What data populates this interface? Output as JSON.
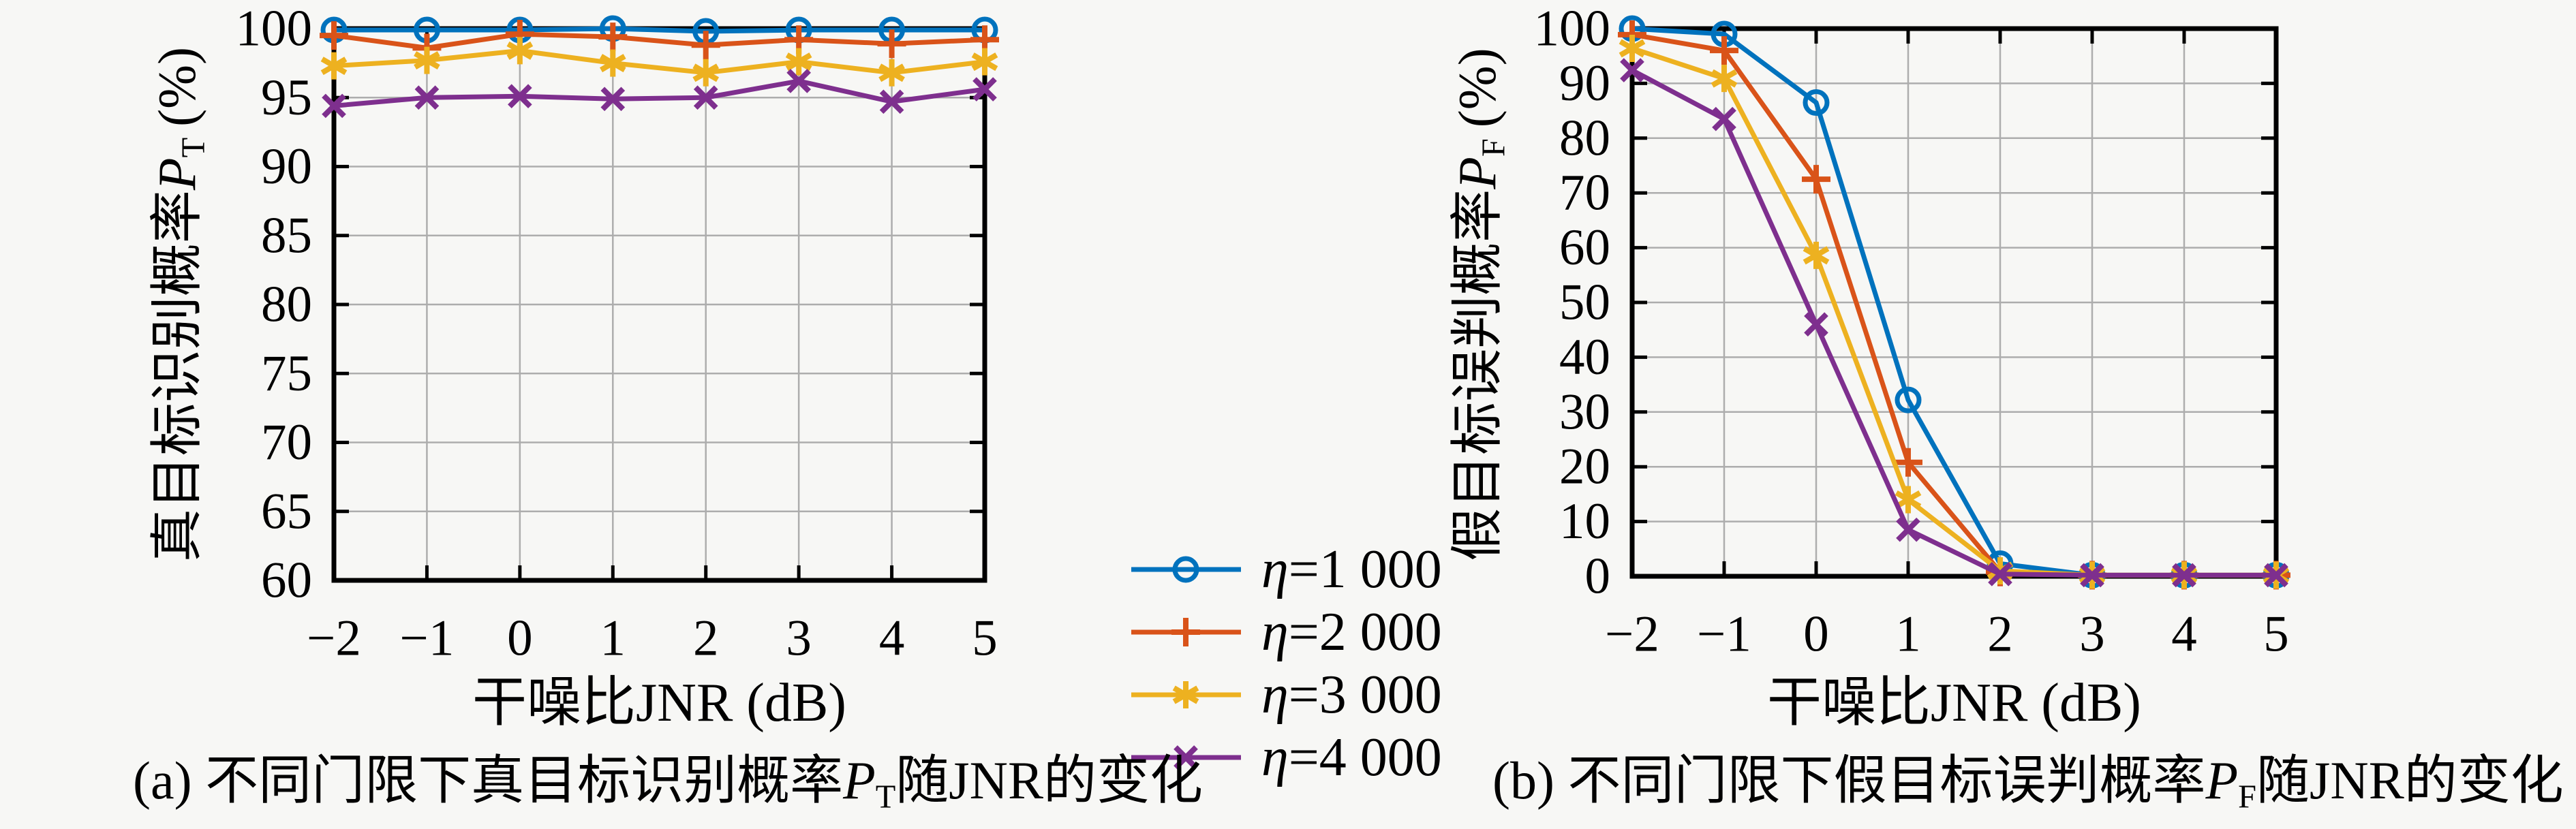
{
  "page": {
    "background": "#f7f7f5",
    "text_color": "#000000",
    "grid_color": "#adadad",
    "frame_color": "#000000"
  },
  "palette": {
    "blue": "#0072BD",
    "orange": "#D95319",
    "yellow": "#EDB120",
    "purple": "#7E2F8E"
  },
  "chart_data": [
    {
      "type": "line",
      "panel_id": "a",
      "xlabel": "干噪比JNR (dB)",
      "ylabel": {
        "prefix": "真目标识别概率",
        "var": "P",
        "sub": "T",
        "suffix": "(%)"
      },
      "x": [
        -2,
        -1,
        0,
        1,
        2,
        3,
        4,
        5
      ],
      "xtick_labels": [
        "−2",
        "−1",
        "0",
        "1",
        "2",
        "3",
        "4",
        "5"
      ],
      "ylim": [
        60,
        100
      ],
      "ytick_values": [
        60,
        65,
        70,
        75,
        80,
        85,
        90,
        95,
        100
      ],
      "ytick_labels": [
        "60",
        "65",
        "70",
        "75",
        "80",
        "85",
        "90",
        "95",
        "100"
      ],
      "grid": true,
      "legend_position": "outside-right",
      "series": [
        {
          "name_var": "η",
          "name_rest": "=1 000",
          "full_name": "η=1 000",
          "color_key": "blue",
          "marker": "circle",
          "values": [
            99.9,
            99.9,
            99.9,
            100.0,
            99.8,
            99.9,
            99.9,
            99.9
          ]
        },
        {
          "name_var": "η",
          "name_rest": "=2 000",
          "full_name": "η=2 000",
          "color_key": "orange",
          "marker": "plus",
          "values": [
            99.5,
            98.6,
            99.6,
            99.4,
            98.8,
            99.2,
            98.9,
            99.2
          ]
        },
        {
          "name_var": "η",
          "name_rest": "=3 000",
          "full_name": "η=3 000",
          "color_key": "yellow",
          "marker": "asterisk",
          "values": [
            97.3,
            97.7,
            98.4,
            97.5,
            96.8,
            97.6,
            96.8,
            97.6
          ]
        },
        {
          "name_var": "η",
          "name_rest": "=4 000",
          "full_name": "η=4 000",
          "color_key": "purple",
          "marker": "x",
          "values": [
            94.4,
            95.0,
            95.1,
            94.9,
            95.0,
            96.2,
            94.7,
            95.6
          ]
        }
      ]
    },
    {
      "type": "line",
      "panel_id": "b",
      "xlabel": "干噪比JNR (dB)",
      "ylabel": {
        "prefix": "假目标误判概率",
        "var": "P",
        "sub": "F",
        "suffix": "(%)"
      },
      "x": [
        -2,
        -1,
        0,
        1,
        2,
        3,
        4,
        5
      ],
      "xtick_labels": [
        "−2",
        "−1",
        "0",
        "1",
        "2",
        "3",
        "4",
        "5"
      ],
      "ylim": [
        0,
        100
      ],
      "ytick_values": [
        0,
        10,
        20,
        30,
        40,
        50,
        60,
        70,
        80,
        90,
        100
      ],
      "ytick_labels": [
        "0",
        "10",
        "20",
        "30",
        "40",
        "50",
        "60",
        "70",
        "80",
        "90",
        "100"
      ],
      "grid": true,
      "series": [
        {
          "name_var": "η",
          "name_rest": "=1 000",
          "full_name": "η=1 000",
          "color_key": "blue",
          "marker": "circle",
          "values": [
            100.0,
            99.0,
            86.5,
            32.2,
            2.3,
            0.2,
            0.2,
            0.2
          ]
        },
        {
          "name_var": "η",
          "name_rest": "=2 000",
          "full_name": "η=2 000",
          "color_key": "orange",
          "marker": "plus",
          "values": [
            98.9,
            96.0,
            72.5,
            20.8,
            0.8,
            0.2,
            0.2,
            0.2
          ]
        },
        {
          "name_var": "η",
          "name_rest": "=3 000",
          "full_name": "η=3 000",
          "color_key": "yellow",
          "marker": "asterisk",
          "values": [
            96.4,
            90.9,
            58.6,
            14.0,
            1.0,
            0.2,
            0.2,
            0.2
          ]
        },
        {
          "name_var": "η",
          "name_rest": "=4 000",
          "full_name": "η=4 000",
          "color_key": "purple",
          "marker": "x",
          "values": [
            92.4,
            83.5,
            46.0,
            8.5,
            0.4,
            0.2,
            0.2,
            0.2
          ]
        }
      ]
    }
  ],
  "captions": {
    "a": {
      "prefix": "(a) 不同门限下真目标识别概率",
      "var": "P",
      "sub": "T",
      "suffix": "随JNR的变化"
    },
    "b": {
      "prefix": "(b) 不同门限下假目标误判概率",
      "var": "P",
      "sub": "F",
      "suffix": "随JNR的变化"
    }
  }
}
